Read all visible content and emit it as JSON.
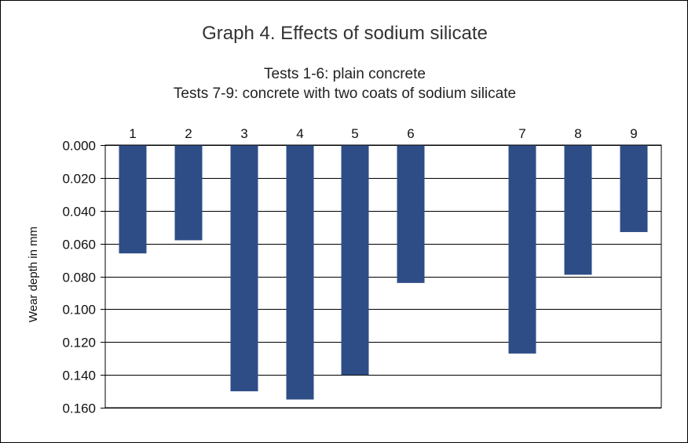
{
  "chart_data": {
    "type": "bar",
    "title": "Graph 4.  Effects of sodium silicate",
    "subtitle_lines": [
      "Tests 1-6:  plain concrete",
      "Tests 7-9: concrete with two coats of sodium silicate"
    ],
    "xlabel": "",
    "ylabel": "Wear depth in mm",
    "y_axis_inverted": true,
    "ylim": [
      0,
      0.16
    ],
    "yticks": [
      "0.000",
      "0.020",
      "0.040",
      "0.060",
      "0.080",
      "0.100",
      "0.120",
      "0.140",
      "0.160"
    ],
    "x_axis_position": "top",
    "categories": [
      "1",
      "2",
      "3",
      "4",
      "5",
      "6",
      "7",
      "8",
      "9"
    ],
    "gap_after_category": "6",
    "values": [
      0.066,
      0.058,
      0.15,
      0.155,
      0.14,
      0.084,
      0.127,
      0.079,
      0.053
    ],
    "bar_color": "#2e4d87",
    "grid": true,
    "legend": "none"
  }
}
